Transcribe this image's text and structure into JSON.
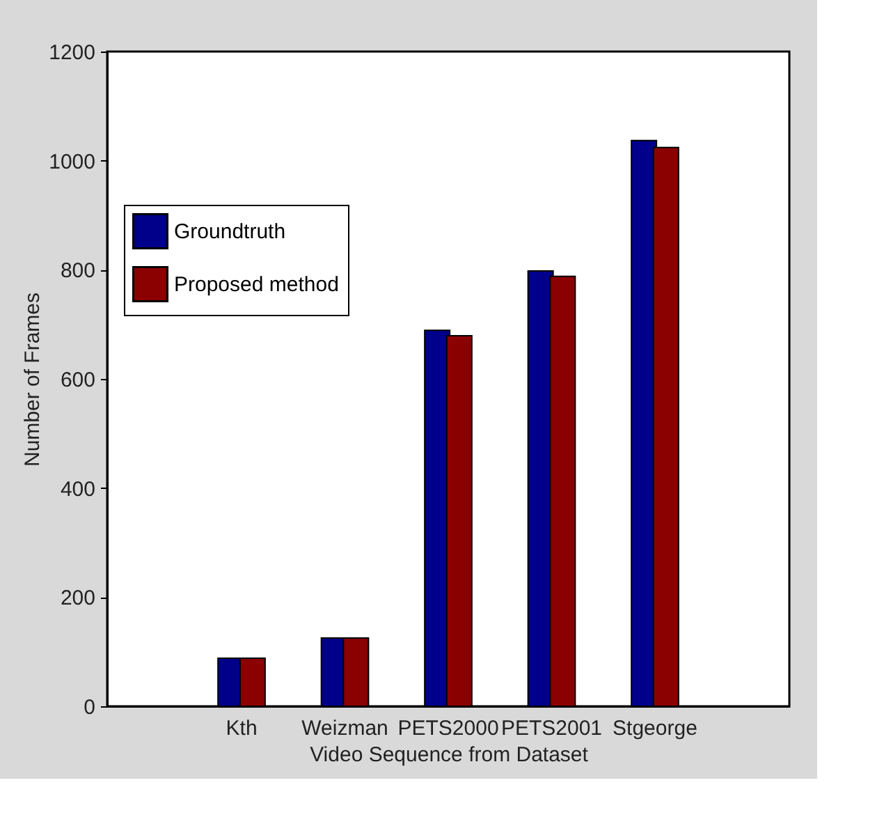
{
  "chart_data": {
    "type": "bar",
    "xlabel": "Video Sequence from Dataset",
    "ylabel": "Number of Frames",
    "categories": [
      "Kth",
      "Weizman",
      "PETS2000",
      "PETS2001",
      "Stgeorge"
    ],
    "series": [
      {
        "name": "Groundtruth",
        "color": "#00008b",
        "values": [
          88,
          125,
          689,
          798,
          1037
        ]
      },
      {
        "name": "Proposed method",
        "color": "#8b0000",
        "values": [
          88,
          125,
          679,
          788,
          1024
        ]
      }
    ],
    "ylim": [
      0,
      1200
    ],
    "yticks": [
      0,
      200,
      400,
      600,
      800,
      1000,
      1200
    ],
    "grid": false,
    "legend": "top left"
  }
}
